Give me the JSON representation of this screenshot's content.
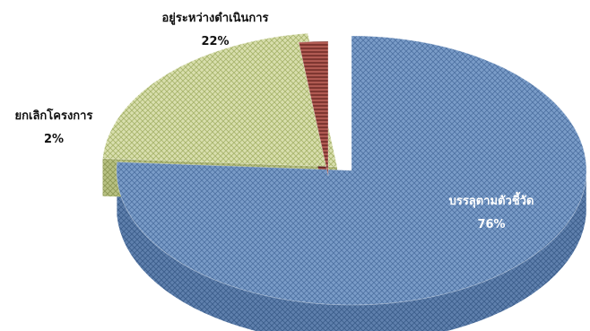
{
  "chart_data": {
    "type": "pie",
    "style": "3d-exploded",
    "title": "",
    "slices": [
      {
        "label": "บรรลุตามตัวชี้วัด",
        "value": 76,
        "percent_text": "76%",
        "color": "#7a9cc8",
        "pattern": "crosshatch"
      },
      {
        "label": "อยู่ระหว่างดำเนินการ",
        "value": 22,
        "percent_text": "22%",
        "color": "#d3dba6",
        "pattern": "crosshatch"
      },
      {
        "label": "ยกเลิกโครงการ",
        "value": 2,
        "percent_text": "2%",
        "color": "#a8504a",
        "pattern": "stripes"
      }
    ],
    "legend": "none",
    "data_labels": "category-and-percent"
  }
}
